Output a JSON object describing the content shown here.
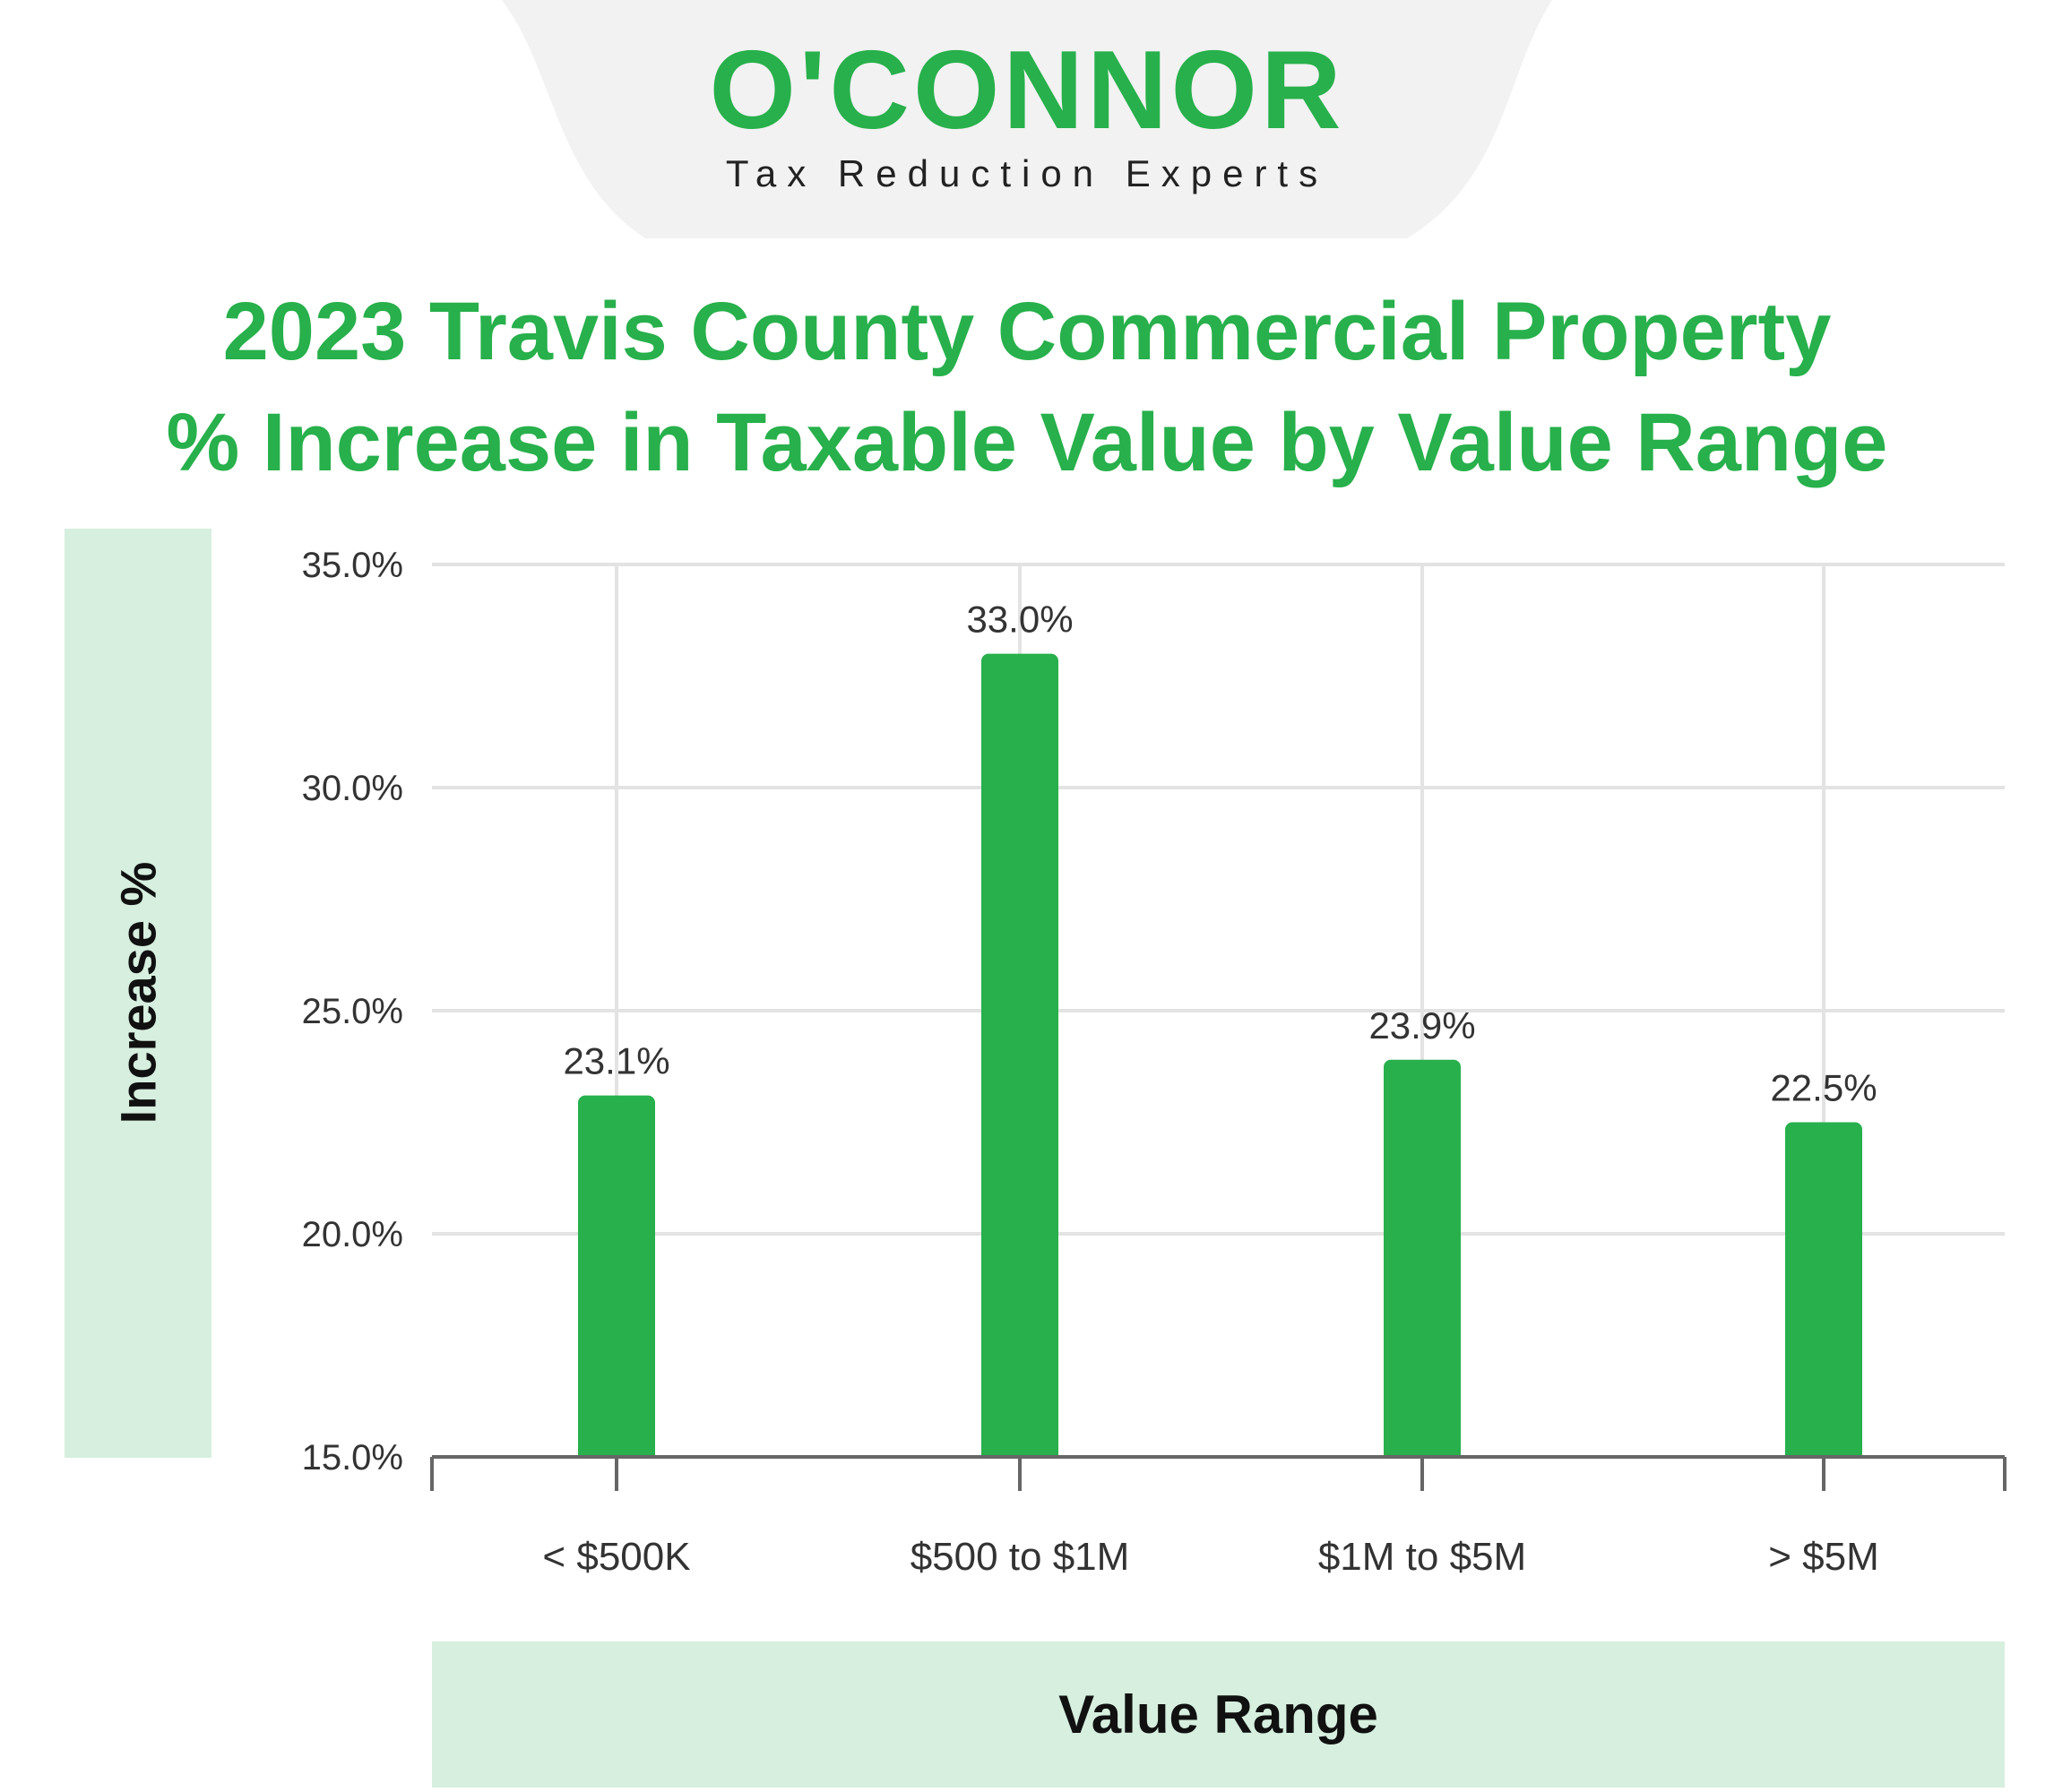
{
  "brand": {
    "name": "O'CONNOR",
    "tagline": "Tax Reduction Experts",
    "color": "#27b04b"
  },
  "chart_data": {
    "type": "bar",
    "title_line1": "2023 Travis County Commercial Property",
    "title_line2": "% Increase in Taxable Value by Value Range",
    "xlabel": "Value Range",
    "ylabel": "Increase %",
    "categories": [
      "< $500K",
      "$500 to $1M",
      "$1M to $5M",
      "> $5M"
    ],
    "values": [
      23.1,
      33.0,
      23.9,
      22.5
    ],
    "value_labels": [
      "23.1%",
      "33.0%",
      "23.9%",
      "22.5%"
    ],
    "ylim": [
      15,
      35
    ],
    "yticks": [
      15,
      20,
      25,
      30,
      35
    ],
    "ytick_labels": [
      "15.0%",
      "20.0%",
      "25.0%",
      "30.0%",
      "35.0%"
    ],
    "grid": true,
    "bar_color": "#27b04b"
  }
}
